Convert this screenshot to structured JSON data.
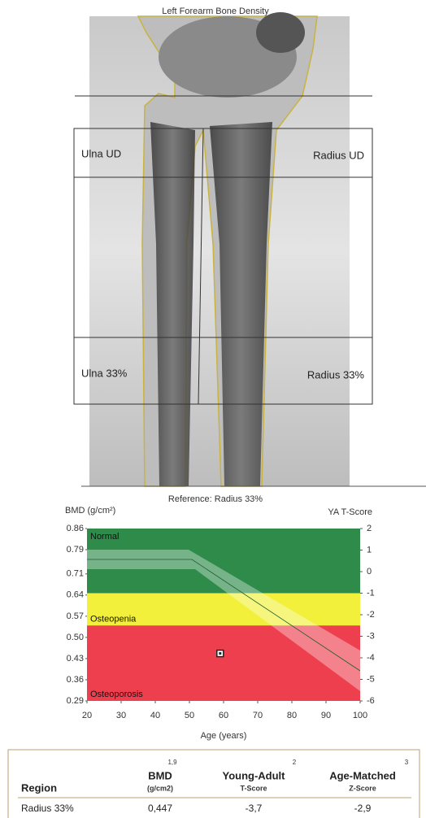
{
  "scan": {
    "title": "Left Forearm Bone Density",
    "regions": [
      "Ulna UD",
      "Radius UD",
      "Ulna 33%",
      "Radius 33%"
    ]
  },
  "chart_data": {
    "type": "scatter",
    "title": "Reference: Radius 33%",
    "y_label": "BMD (g/cm²)",
    "y2_label": "YA T-Score",
    "x_label": "Age (years)",
    "xlim": [
      20,
      100
    ],
    "xticks": [
      20,
      30,
      40,
      50,
      60,
      70,
      80,
      90,
      100
    ],
    "ylim": [
      0.29,
      0.86
    ],
    "yticks": [
      0.86,
      0.79,
      0.71,
      0.64,
      0.57,
      {
        "value": 0.5,
        "label": "0.50"
      },
      0.43,
      0.36,
      0.29
    ],
    "y2lim": [
      -6,
      2
    ],
    "y2ticks": [
      2,
      1,
      0,
      -1,
      -2,
      -3,
      -4,
      -5,
      -6
    ],
    "zones": [
      {
        "label": "Normal",
        "from": -1,
        "to": 2,
        "color": "#2e8b4a"
      },
      {
        "label": "Osteopenia",
        "from": -2.5,
        "to": -1,
        "color": "#f2f03a"
      },
      {
        "label": "Osteoporosis",
        "from": -6,
        "to": -2.5,
        "color": "#ee3f4f"
      }
    ],
    "series": [
      {
        "x": [
          59
        ],
        "values": [
          0.447
        ],
        "color": "#222"
      }
    ]
  },
  "table": {
    "header": [
      "Region",
      "BMD",
      "Young-Adult",
      "Age-Matched"
    ],
    "units": [
      "(g/cm2)",
      "T-Score",
      "Z-Score"
    ],
    "notes": [
      "1,9",
      "2",
      "3"
    ],
    "rows": [
      [
        "Radius 33%",
        "0,447",
        "-3,7",
        "-2,9"
      ]
    ]
  }
}
